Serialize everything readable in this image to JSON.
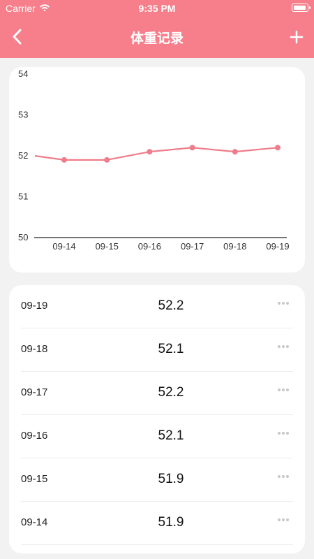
{
  "status_bar": {
    "carrier": "Carrier",
    "time": "9:35 PM",
    "wifi_icon": "wifi-icon",
    "battery_icon": "battery-icon"
  },
  "header": {
    "title": "体重记录",
    "back_icon": "chevron-left-icon",
    "add_icon": "plus-icon",
    "background_color": "#f77f8b"
  },
  "chart_data": {
    "type": "line",
    "x": [
      "09-14",
      "09-15",
      "09-16",
      "09-17",
      "09-18",
      "09-19"
    ],
    "y_ticks": [
      "50",
      "51",
      "52",
      "53",
      "54"
    ],
    "ylim": [
      50,
      54
    ],
    "line_start_value": 52.0,
    "values": [
      51.9,
      51.9,
      52.1,
      52.2,
      52.1,
      52.2
    ],
    "line_color": "#ef7c8b",
    "grid": false
  },
  "records": [
    {
      "date": "09-19",
      "weight": "52.2"
    },
    {
      "date": "09-18",
      "weight": "52.1"
    },
    {
      "date": "09-17",
      "weight": "52.2"
    },
    {
      "date": "09-16",
      "weight": "52.1"
    },
    {
      "date": "09-15",
      "weight": "51.9"
    },
    {
      "date": "09-14",
      "weight": "51.9"
    }
  ],
  "row_more_icon": "more-horizontal-icon"
}
